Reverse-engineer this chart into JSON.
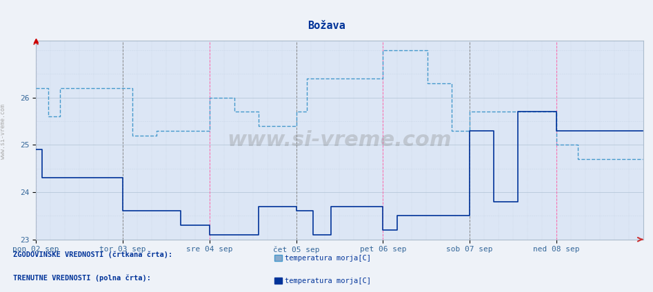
{
  "title": "Božava",
  "background_color": "#eef2f8",
  "plot_bg_color": "#dce6f5",
  "ylim": [
    23.0,
    27.2
  ],
  "yticks": [
    23,
    24,
    25,
    26
  ],
  "xlabel": "",
  "ylabel": "",
  "day_labels": [
    "pon 02 sep",
    "tor 03 sep",
    "sre 04 sep",
    "čet 05 sep",
    "pet 06 sep",
    "sob 07 sep",
    "ned 08 sep"
  ],
  "day_positions": [
    0,
    144,
    288,
    432,
    576,
    720,
    864
  ],
  "total_points": 1008,
  "historical_color": "#4499cc",
  "current_color": "#003399",
  "historical_lw": 1.0,
  "current_lw": 1.2,
  "grid_color": "#bbccdd",
  "vline_color": "#ff66aa",
  "vline_color2": "#888888",
  "legend_text_hist": "temperatura morja[C]",
  "legend_text_curr": "temperatura morja[C]",
  "legend_label_hist": "ZGODOVINSKE VREDNOSTI (črtkana črta):",
  "legend_label_curr": "TRENUTNE VREDNOSTI (polna črta):",
  "watermark": "www.si-vreme.com",
  "hist_data": [
    [
      0,
      26.2
    ],
    [
      20,
      26.2
    ],
    [
      20,
      25.6
    ],
    [
      40,
      25.6
    ],
    [
      40,
      26.2
    ],
    [
      80,
      26.2
    ],
    [
      80,
      26.2
    ],
    [
      144,
      26.2
    ],
    [
      144,
      26.2
    ],
    [
      160,
      26.2
    ],
    [
      160,
      25.2
    ],
    [
      200,
      25.2
    ],
    [
      200,
      25.3
    ],
    [
      240,
      25.3
    ],
    [
      240,
      25.3
    ],
    [
      288,
      25.3
    ],
    [
      288,
      26.0
    ],
    [
      310,
      26.0
    ],
    [
      310,
      26.0
    ],
    [
      330,
      26.0
    ],
    [
      330,
      25.7
    ],
    [
      370,
      25.7
    ],
    [
      370,
      25.4
    ],
    [
      432,
      25.4
    ],
    [
      432,
      25.7
    ],
    [
      450,
      25.7
    ],
    [
      450,
      26.4
    ],
    [
      490,
      26.4
    ],
    [
      490,
      26.4
    ],
    [
      576,
      26.4
    ],
    [
      576,
      27.0
    ],
    [
      610,
      27.0
    ],
    [
      610,
      27.0
    ],
    [
      650,
      27.0
    ],
    [
      650,
      26.3
    ],
    [
      690,
      26.3
    ],
    [
      690,
      25.3
    ],
    [
      720,
      25.3
    ],
    [
      720,
      25.7
    ],
    [
      760,
      25.7
    ],
    [
      760,
      25.7
    ],
    [
      800,
      25.7
    ],
    [
      800,
      25.7
    ],
    [
      864,
      25.7
    ],
    [
      864,
      25.0
    ],
    [
      900,
      25.0
    ],
    [
      900,
      24.7
    ],
    [
      950,
      24.7
    ],
    [
      950,
      24.7
    ],
    [
      1007,
      24.7
    ]
  ],
  "curr_data": [
    [
      0,
      24.9
    ],
    [
      10,
      24.9
    ],
    [
      10,
      24.3
    ],
    [
      30,
      24.3
    ],
    [
      30,
      24.3
    ],
    [
      144,
      24.3
    ],
    [
      144,
      23.6
    ],
    [
      160,
      23.6
    ],
    [
      160,
      23.6
    ],
    [
      240,
      23.6
    ],
    [
      240,
      23.3
    ],
    [
      288,
      23.3
    ],
    [
      288,
      23.1
    ],
    [
      320,
      23.1
    ],
    [
      320,
      23.1
    ],
    [
      370,
      23.1
    ],
    [
      370,
      23.7
    ],
    [
      432,
      23.7
    ],
    [
      432,
      23.6
    ],
    [
      460,
      23.6
    ],
    [
      460,
      23.1
    ],
    [
      490,
      23.1
    ],
    [
      490,
      23.7
    ],
    [
      530,
      23.7
    ],
    [
      530,
      23.7
    ],
    [
      576,
      23.7
    ],
    [
      576,
      23.2
    ],
    [
      600,
      23.2
    ],
    [
      600,
      23.5
    ],
    [
      650,
      23.5
    ],
    [
      650,
      23.5
    ],
    [
      720,
      23.5
    ],
    [
      720,
      25.3
    ],
    [
      740,
      25.3
    ],
    [
      740,
      25.3
    ],
    [
      760,
      25.3
    ],
    [
      760,
      23.8
    ],
    [
      800,
      23.8
    ],
    [
      800,
      25.7
    ],
    [
      864,
      25.7
    ],
    [
      864,
      25.3
    ],
    [
      900,
      25.3
    ],
    [
      900,
      25.3
    ],
    [
      1007,
      25.3
    ]
  ]
}
